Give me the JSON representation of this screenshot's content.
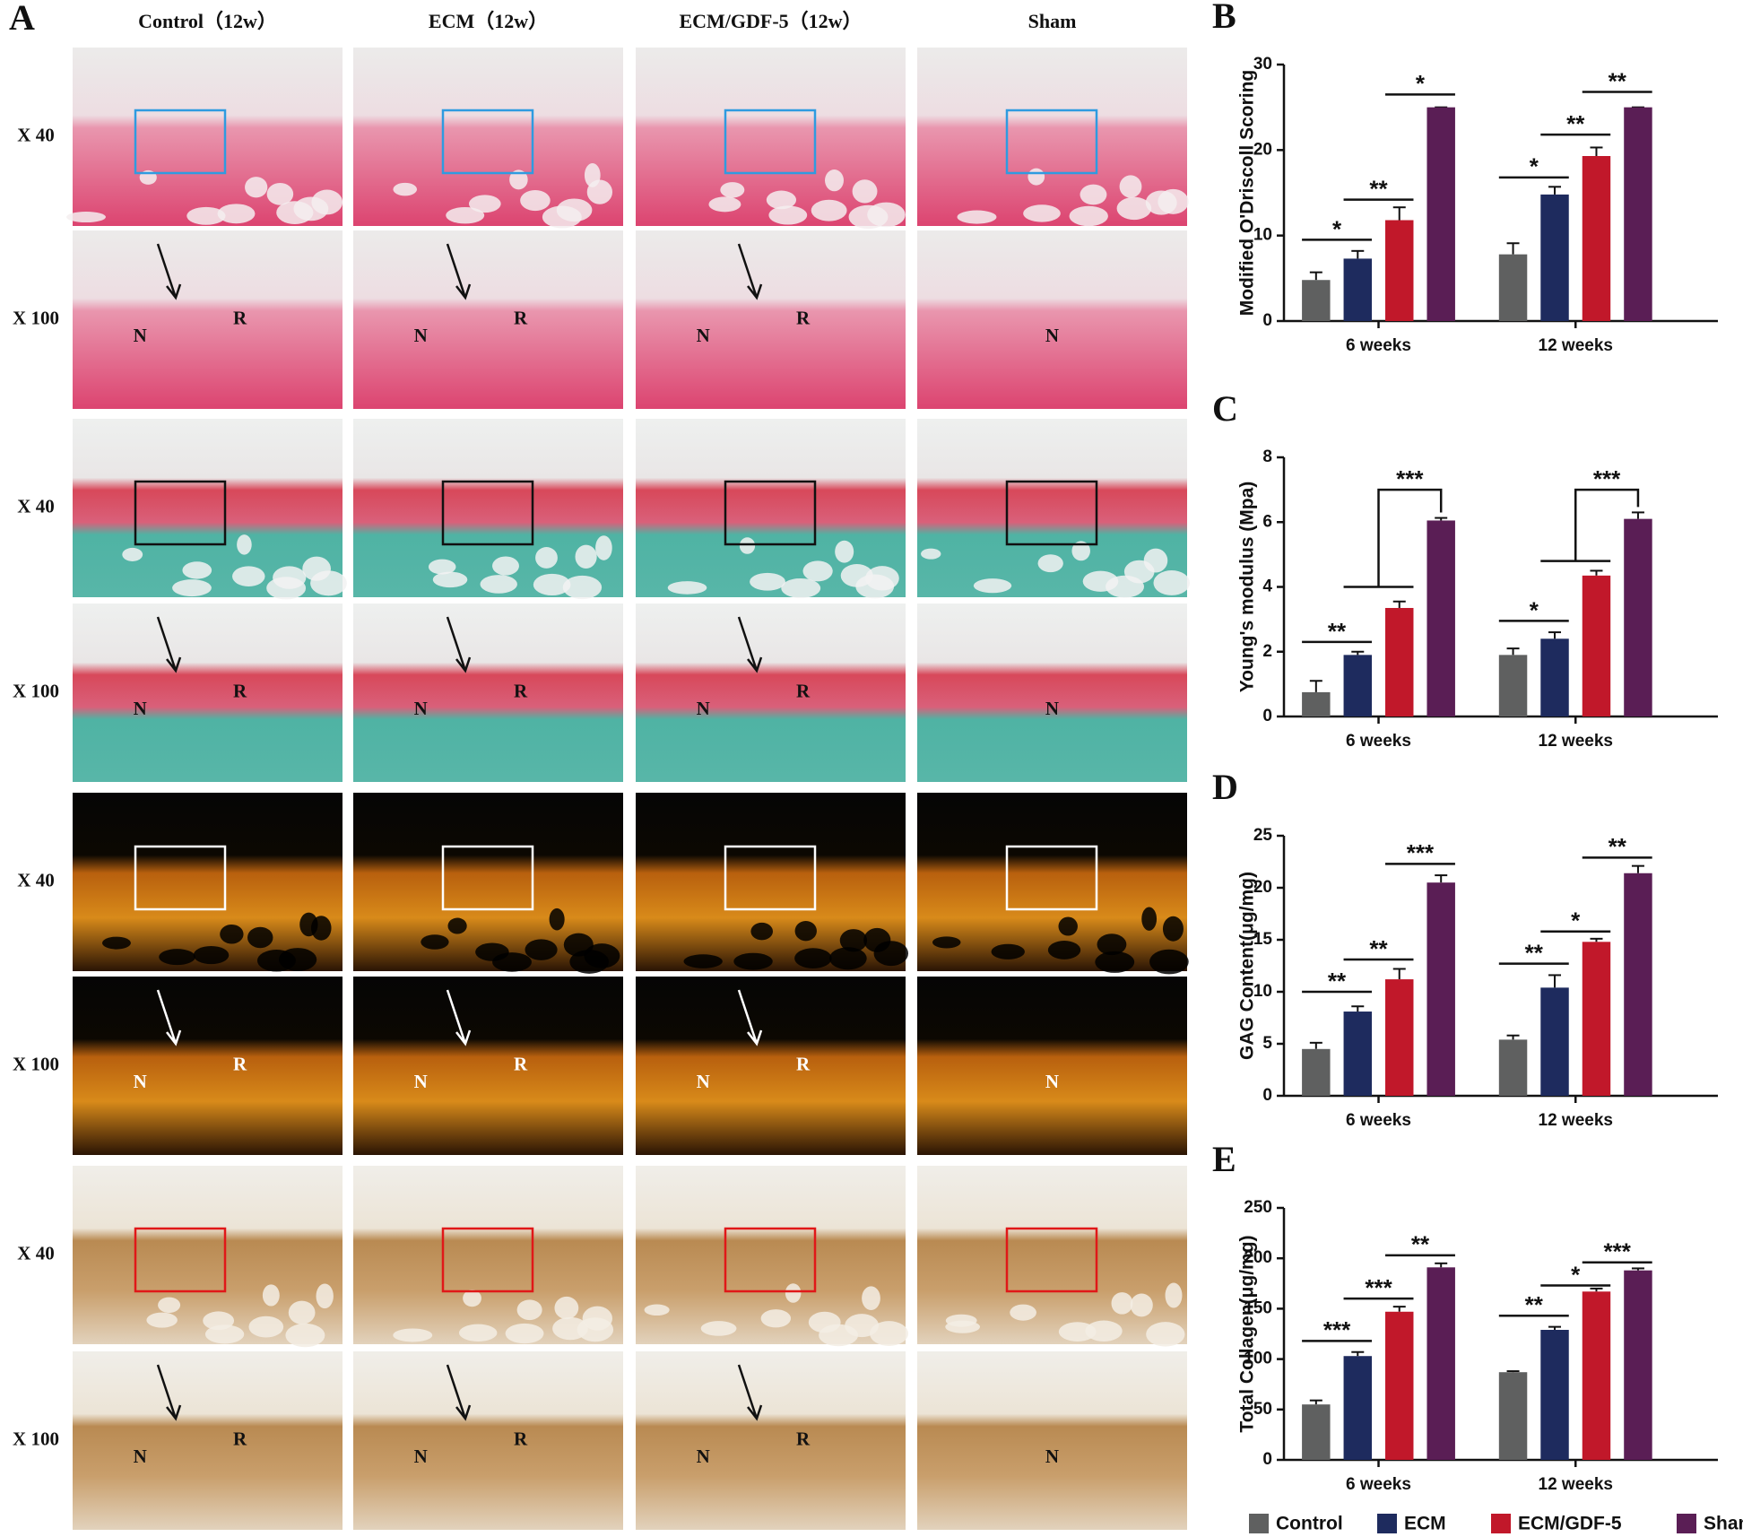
{
  "panel_a": {
    "label": "A",
    "columns": [
      "Control（12w）",
      "ECM（12w）",
      "ECM/GDF-5（12w）",
      "Sham"
    ],
    "rows": [
      "X 40",
      "X 100",
      "X 40",
      "X 100",
      "X 40",
      "X 100",
      "X 40",
      "X 100"
    ],
    "cells": [
      [
        [],
        [],
        [],
        []
      ],
      [
        [
          "N",
          "R"
        ],
        [
          "N",
          "R"
        ],
        [
          "N",
          "R"
        ],
        [
          "N"
        ]
      ],
      [
        [],
        [],
        [],
        []
      ],
      [
        [
          "N",
          "R"
        ],
        [
          "N",
          "R"
        ],
        [
          "N",
          "R"
        ],
        [
          "N"
        ]
      ],
      [
        [],
        [],
        [],
        []
      ],
      [
        [
          "N",
          "R"
        ],
        [
          "N",
          "R"
        ],
        [
          "N",
          "R"
        ],
        [
          "N"
        ]
      ],
      [
        [],
        [],
        [],
        []
      ],
      [
        [
          "N",
          "R"
        ],
        [
          "N",
          "R"
        ],
        [
          "N",
          "R"
        ],
        [
          "N"
        ]
      ]
    ]
  },
  "chart_data": [
    {
      "type": "bar",
      "label": "B",
      "y_label": "Modified O'Driscoll Scoring",
      "categories": [
        "6 weeks",
        "12 weeks"
      ],
      "ylim": [
        0,
        30
      ],
      "yticks": [
        0,
        10,
        20,
        30
      ],
      "series": [
        {
          "color": "#5f6060",
          "values": [
            4.8,
            7.8
          ],
          "errors": [
            0.9,
            1.3
          ]
        },
        {
          "color": "#1e2b5e",
          "values": [
            7.3,
            14.8
          ],
          "errors": [
            0.9,
            0.9
          ]
        },
        {
          "color": "#c1182a",
          "values": [
            11.8,
            19.3
          ],
          "errors": [
            1.5,
            1.0
          ]
        },
        {
          "color": "#5a1e55",
          "values": [
            25,
            25
          ],
          "errors": [
            0,
            0
          ]
        }
      ],
      "annotations": [
        {
          "text": "*",
          "group": 0,
          "from": 0,
          "to": 1,
          "level": 9.5
        },
        {
          "text": "**",
          "group": 0,
          "from": 1,
          "to": 2,
          "level": 14.2
        },
        {
          "text": "*",
          "group": 0,
          "from": 2,
          "to": 3,
          "level": 26.5
        },
        {
          "text": "*",
          "group": 1,
          "from": 0,
          "to": 1,
          "level": 16.8
        },
        {
          "text": "**",
          "group": 1,
          "from": 1,
          "to": 2,
          "level": 21.8
        },
        {
          "text": "**",
          "group": 1,
          "from": 2,
          "to": 3,
          "level": 26.8
        }
      ]
    },
    {
      "type": "bar",
      "label": "C",
      "y_label": "Young's modulus (Mpa)",
      "categories": [
        "6 weeks",
        "12 weeks"
      ],
      "ylim": [
        0,
        8
      ],
      "yticks": [
        0,
        2,
        4,
        6,
        8
      ],
      "series": [
        {
          "color": "#5f6060",
          "values": [
            0.75,
            1.9
          ],
          "errors": [
            0.35,
            0.2
          ]
        },
        {
          "color": "#1e2b5e",
          "values": [
            1.9,
            2.4
          ],
          "errors": [
            0.1,
            0.2
          ]
        },
        {
          "color": "#c1182a",
          "values": [
            3.35,
            4.35
          ],
          "errors": [
            0.2,
            0.15
          ]
        },
        {
          "color": "#5a1e55",
          "values": [
            6.05,
            6.1
          ],
          "errors": [
            0.08,
            0.2
          ]
        }
      ],
      "annotations": [
        {
          "text": "**",
          "group": 0,
          "from": 0,
          "to": 1,
          "level": 2.3
        },
        {
          "text": "***",
          "group": 0,
          "from": [
            1,
            2
          ],
          "to": 3,
          "level": 7.0,
          "base": 4.0
        },
        {
          "text": "*",
          "group": 1,
          "from": 0,
          "to": 1,
          "level": 2.95
        },
        {
          "text": "***",
          "group": 1,
          "from": [
            1,
            2
          ],
          "to": 3,
          "level": 7.0,
          "base": 4.8
        }
      ]
    },
    {
      "type": "bar",
      "label": "D",
      "y_label": "GAG Content(μg/mg)",
      "categories": [
        "6 weeks",
        "12 weeks"
      ],
      "ylim": [
        0,
        25
      ],
      "yticks": [
        0,
        5,
        10,
        15,
        20,
        25
      ],
      "series": [
        {
          "color": "#5f6060",
          "values": [
            4.5,
            5.4
          ],
          "errors": [
            0.6,
            0.4
          ]
        },
        {
          "color": "#1e2b5e",
          "values": [
            8.1,
            10.4
          ],
          "errors": [
            0.5,
            1.2
          ]
        },
        {
          "color": "#c1182a",
          "values": [
            11.2,
            14.8
          ],
          "errors": [
            1.0,
            0.3
          ]
        },
        {
          "color": "#5a1e55",
          "values": [
            20.5,
            21.4
          ],
          "errors": [
            0.7,
            0.7
          ]
        }
      ],
      "annotations": [
        {
          "text": "**",
          "group": 0,
          "from": 0,
          "to": 1,
          "level": 10.0
        },
        {
          "text": "**",
          "group": 0,
          "from": 1,
          "to": 2,
          "level": 13.1
        },
        {
          "text": "***",
          "group": 0,
          "from": 2,
          "to": 3,
          "level": 22.3
        },
        {
          "text": "**",
          "group": 1,
          "from": 0,
          "to": 1,
          "level": 12.7
        },
        {
          "text": "*",
          "group": 1,
          "from": 1,
          "to": 2,
          "level": 15.8
        },
        {
          "text": "**",
          "group": 1,
          "from": 2,
          "to": 3,
          "level": 22.9
        }
      ]
    },
    {
      "type": "bar",
      "label": "E",
      "y_label": "Total Collagen(μg/mg)",
      "categories": [
        "6 weeks",
        "12 weeks"
      ],
      "ylim": [
        0,
        250
      ],
      "yticks": [
        0,
        50,
        100,
        150,
        200,
        250
      ],
      "legend": "bottom",
      "series": [
        {
          "name": "Control",
          "color": "#5f6060",
          "values": [
            55,
            87
          ],
          "errors": [
            4,
            1
          ]
        },
        {
          "name": "ECM",
          "color": "#1e2b5e",
          "values": [
            103,
            129
          ],
          "errors": [
            4,
            3
          ]
        },
        {
          "name": "ECM/GDF-5",
          "color": "#c1182a",
          "values": [
            147,
            167
          ],
          "errors": [
            5,
            3
          ]
        },
        {
          "name": "Sham",
          "color": "#5a1e55",
          "values": [
            191,
            188
          ],
          "errors": [
            4,
            2
          ]
        }
      ],
      "annotations": [
        {
          "text": "***",
          "group": 0,
          "from": 0,
          "to": 1,
          "level": 118
        },
        {
          "text": "***",
          "group": 0,
          "from": 1,
          "to": 2,
          "level": 160
        },
        {
          "text": "**",
          "group": 0,
          "from": 2,
          "to": 3,
          "level": 203
        },
        {
          "text": "**",
          "group": 1,
          "from": 0,
          "to": 1,
          "level": 143
        },
        {
          "text": "*",
          "group": 1,
          "from": 1,
          "to": 2,
          "level": 173
        },
        {
          "text": "***",
          "group": 1,
          "from": 2,
          "to": 3,
          "level": 196
        }
      ]
    }
  ]
}
